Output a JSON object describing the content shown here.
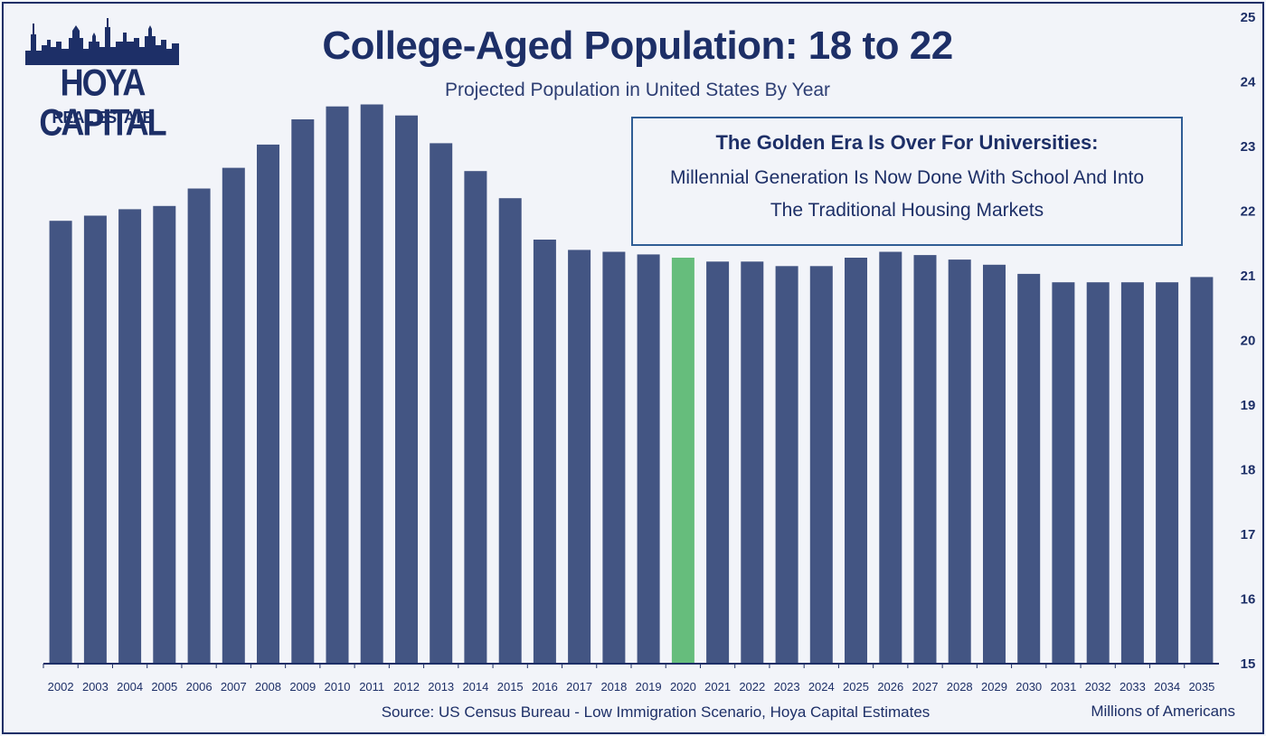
{
  "logo": {
    "main": "HOYA CAPITAL",
    "sub": "REAL ESTATE"
  },
  "header": {
    "title": "College-Aged Population: 18 to 22",
    "subtitle": "Projected Population in United States By Year"
  },
  "callout": {
    "heading": "The Golden Era Is Over For Universities:",
    "body": "Millennial Generation Is Now Done With School And Into The Traditional Housing Markets"
  },
  "footer": {
    "source": "Source: US Census Bureau - Low Immigration Scenario, Hoya Capital Estimates",
    "units": "Millions of Americans"
  },
  "colors": {
    "bar": "#435583",
    "highlight": "#66bd7c",
    "text": "#1d2f67"
  },
  "chart_data": {
    "type": "bar",
    "title": "College-Aged Population: 18 to 22",
    "subtitle": "Projected Population in United States By Year",
    "xlabel": "",
    "ylabel": "Millions of Americans",
    "y_axis_side": "right",
    "ylim": [
      15,
      25
    ],
    "yticks": [
      15,
      16,
      17,
      18,
      19,
      20,
      21,
      22,
      23,
      24,
      25
    ],
    "highlight_category": "2020",
    "categories": [
      "2002",
      "2003",
      "2004",
      "2005",
      "2006",
      "2007",
      "2008",
      "2009",
      "2010",
      "2011",
      "2012",
      "2013",
      "2014",
      "2015",
      "2016",
      "2017",
      "2018",
      "2019",
      "2020",
      "2021",
      "2022",
      "2023",
      "2024",
      "2025",
      "2026",
      "2027",
      "2028",
      "2029",
      "2030",
      "2031",
      "2032",
      "2033",
      "2034",
      "2035"
    ],
    "values": [
      21.85,
      21.93,
      22.03,
      22.08,
      22.35,
      22.67,
      23.03,
      23.42,
      23.62,
      23.65,
      23.48,
      23.05,
      22.62,
      22.2,
      21.56,
      21.4,
      21.37,
      21.33,
      21.28,
      21.22,
      21.22,
      21.15,
      21.15,
      21.28,
      21.37,
      21.32,
      21.25,
      21.17,
      21.03,
      20.9,
      20.9,
      20.9,
      20.9,
      20.98
    ]
  }
}
